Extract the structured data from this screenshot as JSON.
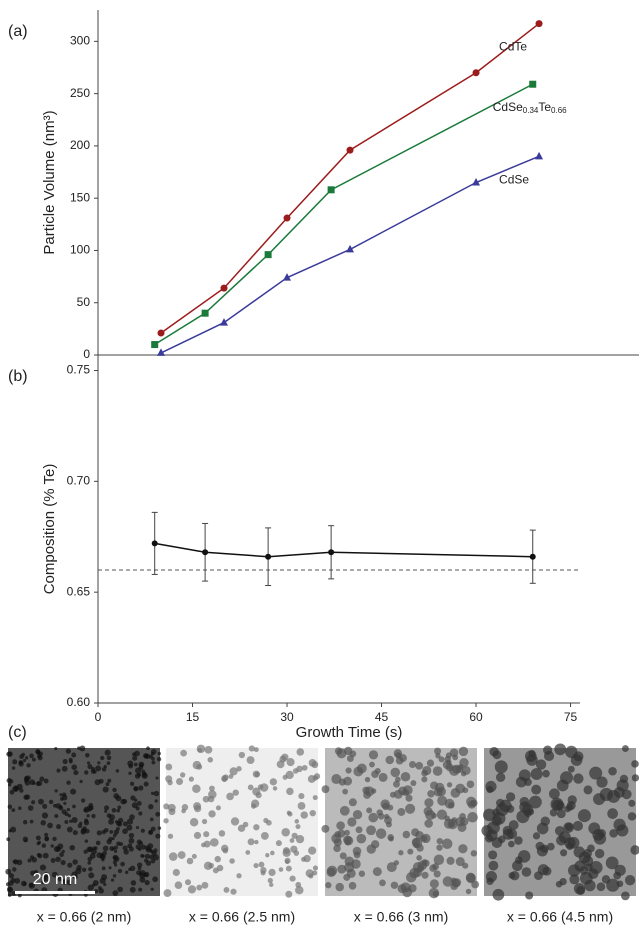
{
  "chart_data": [
    {
      "type": "line",
      "panel_label": "(a)",
      "ylabel": "Particle Volume (nm³)",
      "xlim": [
        0,
        76.5
      ],
      "ylim": [
        0,
        330
      ],
      "yticks": [
        0,
        50,
        100,
        150,
        200,
        250,
        300
      ],
      "series": [
        {
          "name": "CdTe",
          "color": "#9b1c1c",
          "marker": "circle",
          "x": [
            10,
            20,
            30,
            40,
            60,
            70
          ],
          "values": [
            21,
            64,
            131,
            196,
            270,
            317
          ]
        },
        {
          "name": "CdSe0.34Te0.66",
          "color": "#1a7a3a",
          "marker": "square",
          "x": [
            9,
            17,
            27,
            37,
            69
          ],
          "values": [
            10,
            40,
            96,
            158,
            259
          ]
        },
        {
          "name": "CdSe",
          "color": "#3b3b9b",
          "marker": "triangle",
          "x": [
            10,
            20,
            30,
            40,
            60,
            70
          ],
          "values": [
            2,
            31,
            74,
            101,
            165,
            190
          ]
        }
      ]
    },
    {
      "type": "errorbar",
      "panel_label": "(b)",
      "ylabel": "Composition (% Te)",
      "xlabel": "Growth Time (s)",
      "xlim": [
        0,
        76.5
      ],
      "xticks": [
        0,
        15,
        30,
        45,
        60,
        75
      ],
      "ylim": [
        0.6,
        0.757
      ],
      "yticks": [
        {
          "value": 0.6,
          "label": "0.60"
        },
        0.65,
        {
          "value": 0.7,
          "label": "0.70"
        },
        0.75
      ],
      "reference_line": 0.66,
      "series": [
        {
          "color": "#111111",
          "x": [
            9,
            17,
            27,
            37,
            69
          ],
          "values": [
            0.672,
            0.668,
            0.666,
            0.668,
            0.666
          ],
          "errors": [
            0.014,
            0.013,
            0.013,
            0.012,
            0.012
          ]
        }
      ]
    }
  ],
  "images": {
    "panel_label": "(c)",
    "scale_bar": "20 nm",
    "captions": [
      "x = 0.66 (2 nm)",
      "x = 0.66 (2.5 nm)",
      "x = 0.66 (3 nm)",
      "x = 0.66 (4.5 nm)"
    ]
  }
}
